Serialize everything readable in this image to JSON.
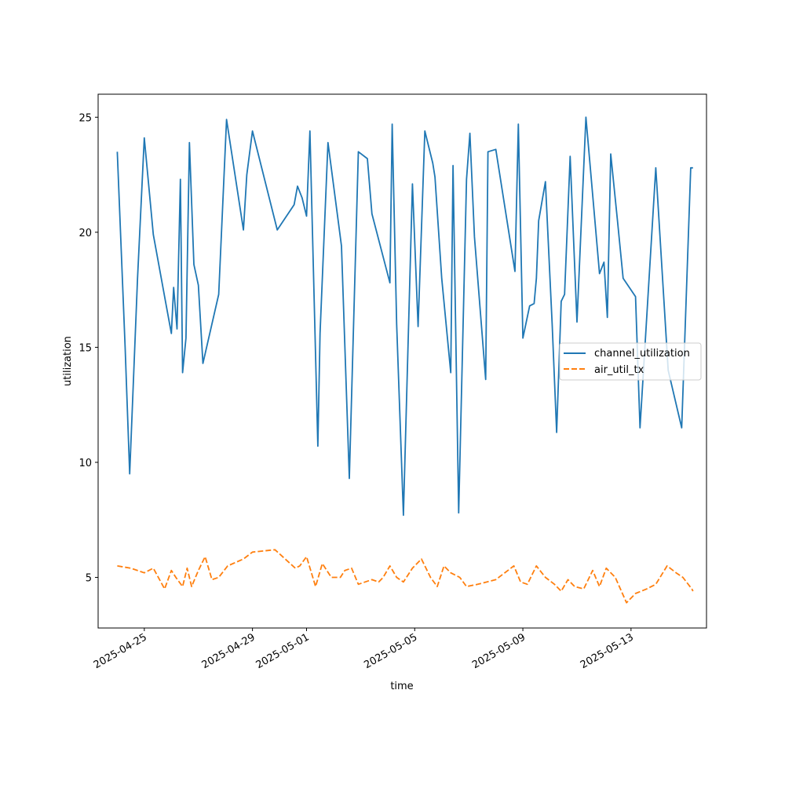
{
  "chart_data": {
    "type": "line",
    "xlabel": "time",
    "ylabel": "utilization",
    "xlim": [
      "2025-04-23T07:00",
      "2025-05-15T19:00"
    ],
    "ylim": [
      2.8,
      26.0
    ],
    "x_ticks": [
      "2025-04-25",
      "2025-04-29",
      "2025-05-01",
      "2025-05-05",
      "2025-05-09",
      "2025-05-13"
    ],
    "y_ticks": [
      5,
      10,
      15,
      20,
      25
    ],
    "legend": "center-right",
    "grid": false,
    "series": [
      {
        "name": "channel_utilization",
        "color": "#1f77b4",
        "dash": "solid",
        "x": [
          "2025-04-24T00:00",
          "2025-04-24T07:00",
          "2025-04-24T11:00",
          "2025-04-24T18:00",
          "2025-04-25T00:00",
          "2025-04-25T08:00",
          "2025-04-25T18:00",
          "2025-04-26T00:00",
          "2025-04-26T02:00",
          "2025-04-26T05:00",
          "2025-04-26T08:00",
          "2025-04-26T10:00",
          "2025-04-26T13:00",
          "2025-04-26T16:00",
          "2025-04-26T20:00",
          "2025-04-27T00:00",
          "2025-04-27T04:00",
          "2025-04-27T18:00",
          "2025-04-28T01:00",
          "2025-04-28T16:00",
          "2025-04-28T19:00",
          "2025-04-29T00:00",
          "2025-04-29T22:00",
          "2025-04-30T13:00",
          "2025-04-30T16:00",
          "2025-04-30T20:00",
          "2025-05-01T00:00",
          "2025-05-01T03:00",
          "2025-05-01T10:00",
          "2025-05-01T12:00",
          "2025-05-01T19:00",
          "2025-05-02T07:00",
          "2025-05-02T14:00",
          "2025-05-02T22:00",
          "2025-05-03T06:00",
          "2025-05-03T10:00",
          "2025-05-04T02:00",
          "2025-05-04T04:00",
          "2025-05-04T08:00",
          "2025-05-04T14:00",
          "2025-05-04T22:00",
          "2025-05-05T03:00",
          "2025-05-05T09:00",
          "2025-05-05T16:00",
          "2025-05-05T18:00",
          "2025-05-06T00:00",
          "2025-05-06T08:00",
          "2025-05-06T10:00",
          "2025-05-06T15:00",
          "2025-05-06T22:00",
          "2025-05-07T01:00",
          "2025-05-07T05:00",
          "2025-05-07T15:00",
          "2025-05-07T17:00",
          "2025-05-08T00:00",
          "2025-05-08T17:00",
          "2025-05-08T20:00",
          "2025-05-09T00:00",
          "2025-05-09T06:00",
          "2025-05-09T10:00",
          "2025-05-09T12:00",
          "2025-05-09T14:00",
          "2025-05-09T20:00",
          "2025-05-10T02:00",
          "2025-05-10T06:00",
          "2025-05-10T10:00",
          "2025-05-10T13:00",
          "2025-05-10T18:00",
          "2025-05-11T00:00",
          "2025-05-11T08:00",
          "2025-05-11T20:00",
          "2025-05-12T00:00",
          "2025-05-12T03:00",
          "2025-05-12T06:00",
          "2025-05-12T12:00",
          "2025-05-12T17:00",
          "2025-05-13T04:00",
          "2025-05-13T08:00",
          "2025-05-13T22:00",
          "2025-05-14T09:00",
          "2025-05-14T21:00",
          "2025-05-15T05:00",
          "2025-05-15T07:00"
        ],
        "values": [
          23.5,
          15.0,
          9.5,
          18.0,
          24.1,
          19.9,
          17.2,
          15.6,
          17.6,
          15.8,
          22.3,
          13.9,
          15.4,
          23.9,
          18.6,
          17.7,
          14.3,
          17.3,
          24.9,
          20.1,
          22.5,
          24.4,
          20.1,
          21.2,
          22.0,
          21.5,
          20.7,
          24.4,
          10.7,
          15.6,
          23.9,
          19.4,
          9.3,
          23.5,
          23.2,
          20.8,
          17.8,
          24.7,
          16.0,
          7.7,
          22.1,
          15.9,
          24.4,
          23.0,
          22.4,
          18.0,
          13.9,
          22.9,
          7.8,
          22.3,
          24.3,
          19.8,
          13.6,
          23.5,
          23.6,
          18.3,
          24.7,
          15.4,
          16.8,
          16.9,
          18.0,
          20.5,
          22.2,
          16.0,
          11.3,
          17.0,
          17.3,
          23.3,
          16.1,
          25.0,
          18.2,
          18.7,
          16.3,
          23.4,
          20.5,
          18.0,
          17.2,
          11.5,
          22.8,
          14.0,
          11.5,
          22.8,
          22.8
        ],
        "note": ""
      },
      {
        "name": "air_util_tx",
        "color": "#ff7f0e",
        "dash": "dashed",
        "x": [
          "2025-04-24T00:00",
          "2025-04-24T12:00",
          "2025-04-25T00:00",
          "2025-04-25T08:00",
          "2025-04-25T18:00",
          "2025-04-26T00:00",
          "2025-04-26T04:00",
          "2025-04-26T10:00",
          "2025-04-26T14:00",
          "2025-04-26T18:00",
          "2025-04-27T00:00",
          "2025-04-27T06:00",
          "2025-04-27T12:00",
          "2025-04-27T18:00",
          "2025-04-28T02:00",
          "2025-04-28T16:00",
          "2025-04-29T00:00",
          "2025-04-29T20:00",
          "2025-04-30T14:00",
          "2025-04-30T18:00",
          "2025-05-01T00:00",
          "2025-05-01T08:00",
          "2025-05-01T14:00",
          "2025-05-01T22:00",
          "2025-05-02T06:00",
          "2025-05-02T10:00",
          "2025-05-02T16:00",
          "2025-05-02T22:00",
          "2025-05-03T10:00",
          "2025-05-03T16:00",
          "2025-05-03T20:00",
          "2025-05-04T02:00",
          "2025-05-04T08:00",
          "2025-05-04T14:00",
          "2025-05-04T22:00",
          "2025-05-05T06:00",
          "2025-05-05T14:00",
          "2025-05-05T20:00",
          "2025-05-06T02:00",
          "2025-05-06T08:00",
          "2025-05-06T16:00",
          "2025-05-06T22:00",
          "2025-05-07T08:00",
          "2025-05-07T16:00",
          "2025-05-08T00:00",
          "2025-05-08T16:00",
          "2025-05-08T22:00",
          "2025-05-09T04:00",
          "2025-05-09T12:00",
          "2025-05-09T20:00",
          "2025-05-10T04:00",
          "2025-05-10T10:00",
          "2025-05-10T16:00",
          "2025-05-10T22:00",
          "2025-05-11T06:00",
          "2025-05-11T14:00",
          "2025-05-11T20:00",
          "2025-05-12T02:00",
          "2025-05-12T10:00",
          "2025-05-12T20:00",
          "2025-05-13T04:00",
          "2025-05-13T14:00",
          "2025-05-13T22:00",
          "2025-05-14T08:00",
          "2025-05-14T16:00",
          "2025-05-14T22:00",
          "2025-05-15T06:00",
          "2025-05-15T07:00"
        ],
        "values": [
          5.5,
          5.4,
          5.2,
          5.4,
          4.5,
          5.3,
          5.0,
          4.6,
          5.4,
          4.6,
          5.3,
          5.9,
          4.9,
          5.0,
          5.5,
          5.8,
          6.1,
          6.2,
          5.4,
          5.5,
          5.9,
          4.6,
          5.6,
          5.0,
          5.0,
          5.3,
          5.4,
          4.7,
          4.9,
          4.8,
          5.0,
          5.5,
          5.0,
          4.8,
          5.4,
          5.8,
          5.0,
          4.6,
          5.5,
          5.2,
          5.0,
          4.6,
          4.7,
          4.8,
          4.9,
          5.5,
          4.8,
          4.7,
          5.5,
          5.0,
          4.7,
          4.4,
          4.9,
          4.6,
          4.5,
          5.3,
          4.6,
          5.4,
          5.0,
          3.9,
          4.3,
          4.5,
          4.7,
          5.5,
          5.2,
          5.0,
          4.5,
          4.4
        ],
        "note": ""
      }
    ]
  }
}
